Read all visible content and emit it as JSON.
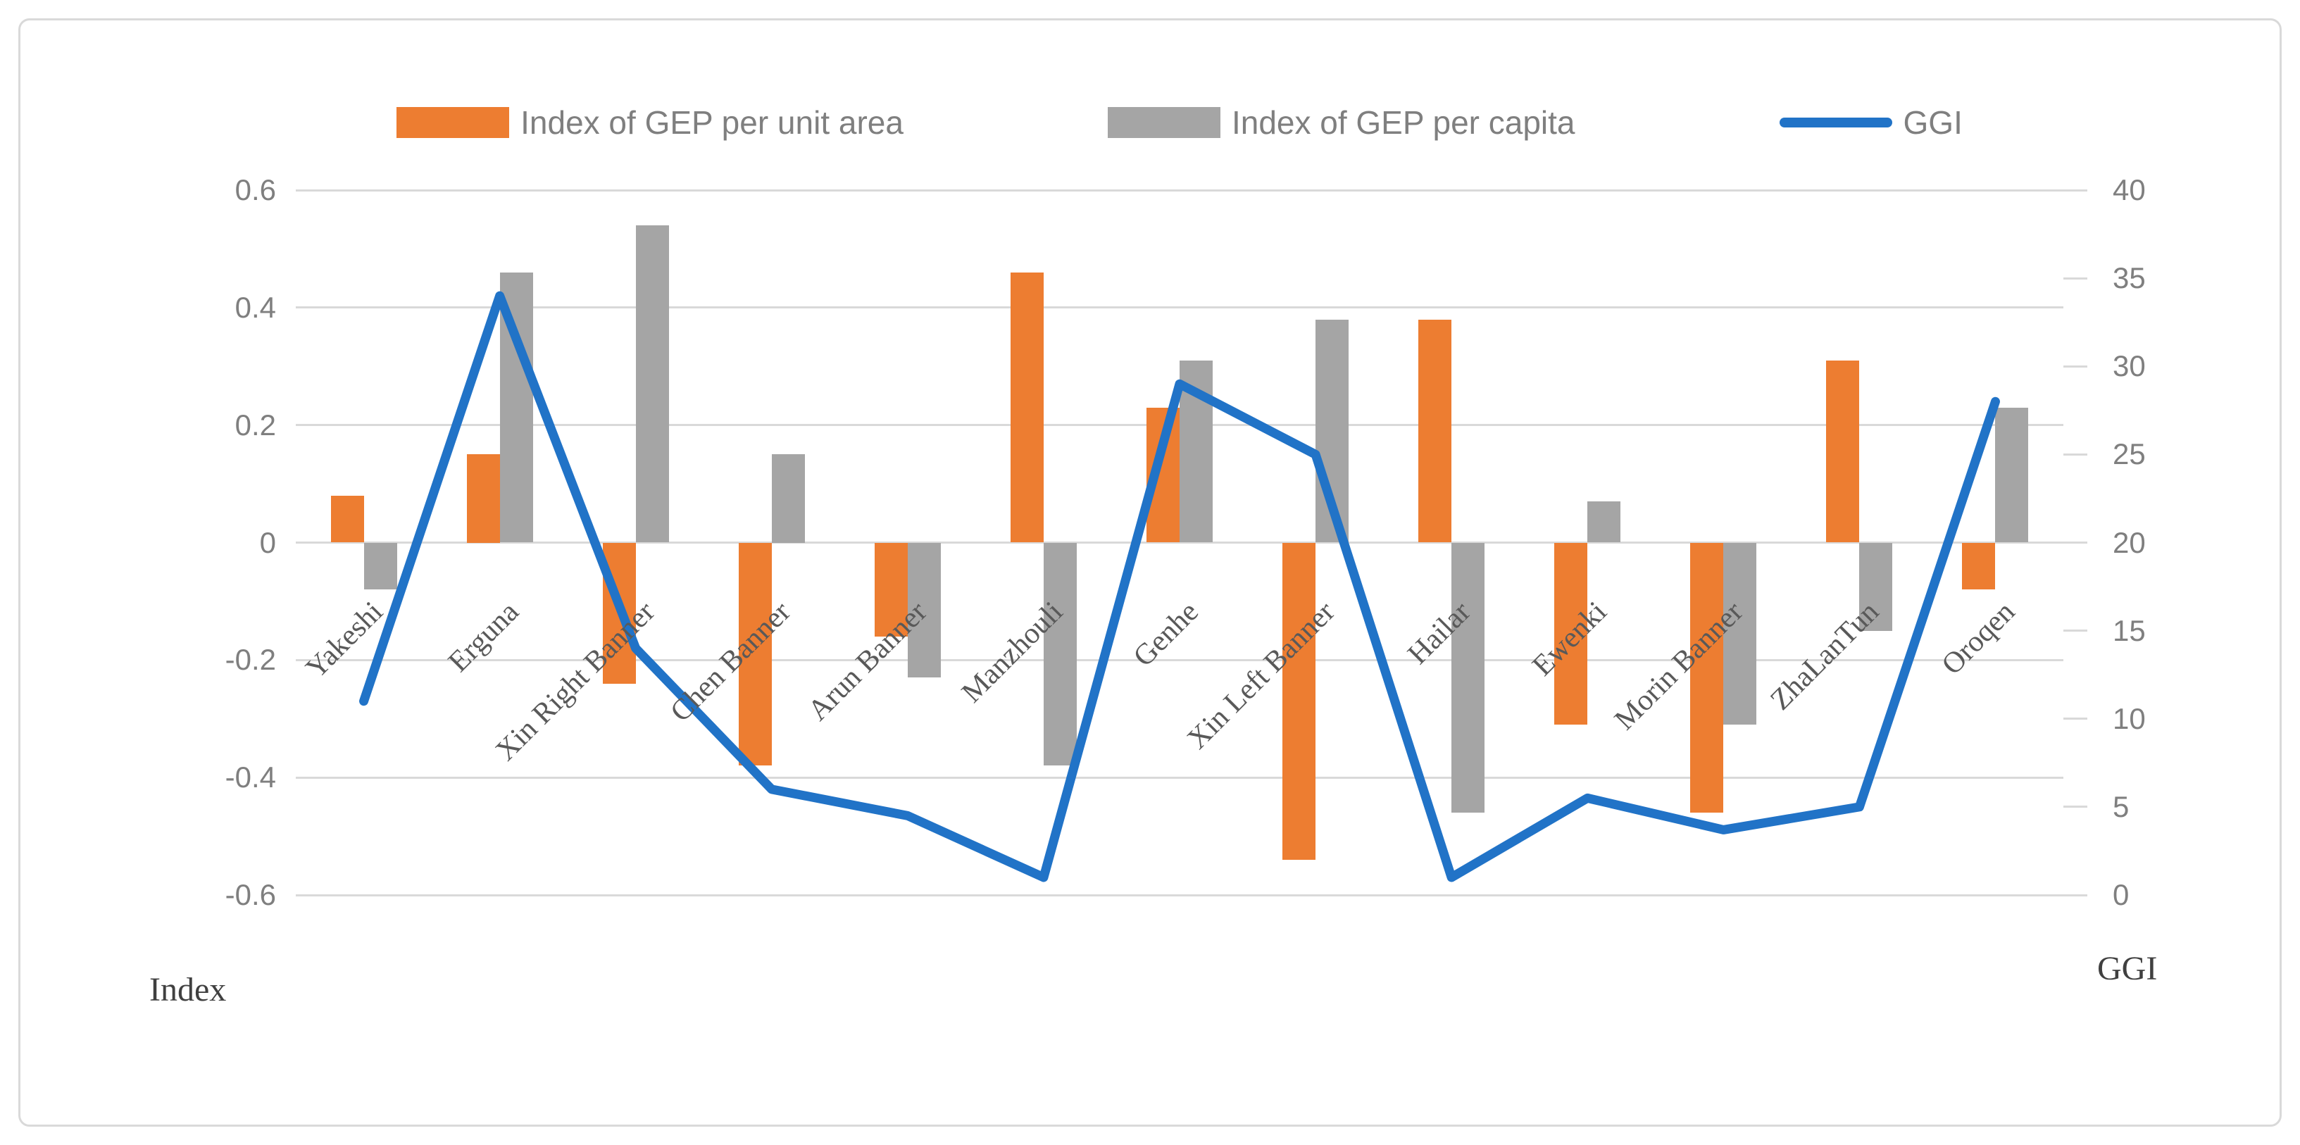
{
  "chart_data": {
    "type": "bar+line",
    "title": "",
    "categories": [
      "Yakeshi",
      "Erguna",
      "Xin Right Banner",
      "Chen Banner",
      "Arun Banner",
      "Manzhouli",
      "Genhe",
      "Xin Left Banner",
      "Hailar",
      "Ewenki",
      "Morin Banner",
      "ZhaLanTun",
      "Oroqen"
    ],
    "series": [
      {
        "name": "Index of GEP per unit area",
        "type": "bar",
        "axis": "left",
        "color": "#ED7D31",
        "values": [
          0.08,
          0.15,
          -0.24,
          -0.38,
          -0.16,
          0.46,
          0.23,
          -0.54,
          0.38,
          -0.31,
          -0.46,
          0.31,
          -0.08
        ]
      },
      {
        "name": "Index of GEP per capita",
        "type": "bar",
        "axis": "left",
        "color": "#A5A5A5",
        "values": [
          -0.08,
          0.46,
          0.54,
          0.15,
          -0.23,
          -0.38,
          0.31,
          0.38,
          -0.46,
          0.07,
          -0.31,
          -0.15,
          0.23
        ]
      },
      {
        "name": "GGI",
        "type": "line",
        "axis": "right",
        "color": "#2173C7",
        "values": [
          11,
          34,
          14,
          6,
          4.5,
          1,
          29,
          25,
          1,
          5.5,
          3.7,
          5,
          28
        ]
      }
    ],
    "left_axis": {
      "title": "Index",
      "min": -0.6,
      "max": 0.6,
      "tick_values": [
        0.6,
        0.4,
        0.2,
        0,
        -0.2,
        -0.4,
        -0.6
      ],
      "tick_labels": [
        "0.6",
        "0.4",
        "0.2",
        "0",
        "-0.2",
        "-0.4",
        "-0.6"
      ]
    },
    "right_axis": {
      "title": "GGI",
      "min": 0,
      "max": 40,
      "tick_values": [
        40,
        35,
        30,
        25,
        20,
        15,
        10,
        5,
        0
      ],
      "tick_labels": [
        "40",
        "35",
        "30",
        "25",
        "20",
        "15",
        "10",
        "5",
        "0"
      ]
    },
    "grid": "horizontal",
    "legend_position": "top",
    "colors": {
      "grid": "#d9d9d9",
      "tick_text": "#7f7f7f",
      "category_text": "#595959",
      "axis_title_text": "#404040"
    }
  }
}
